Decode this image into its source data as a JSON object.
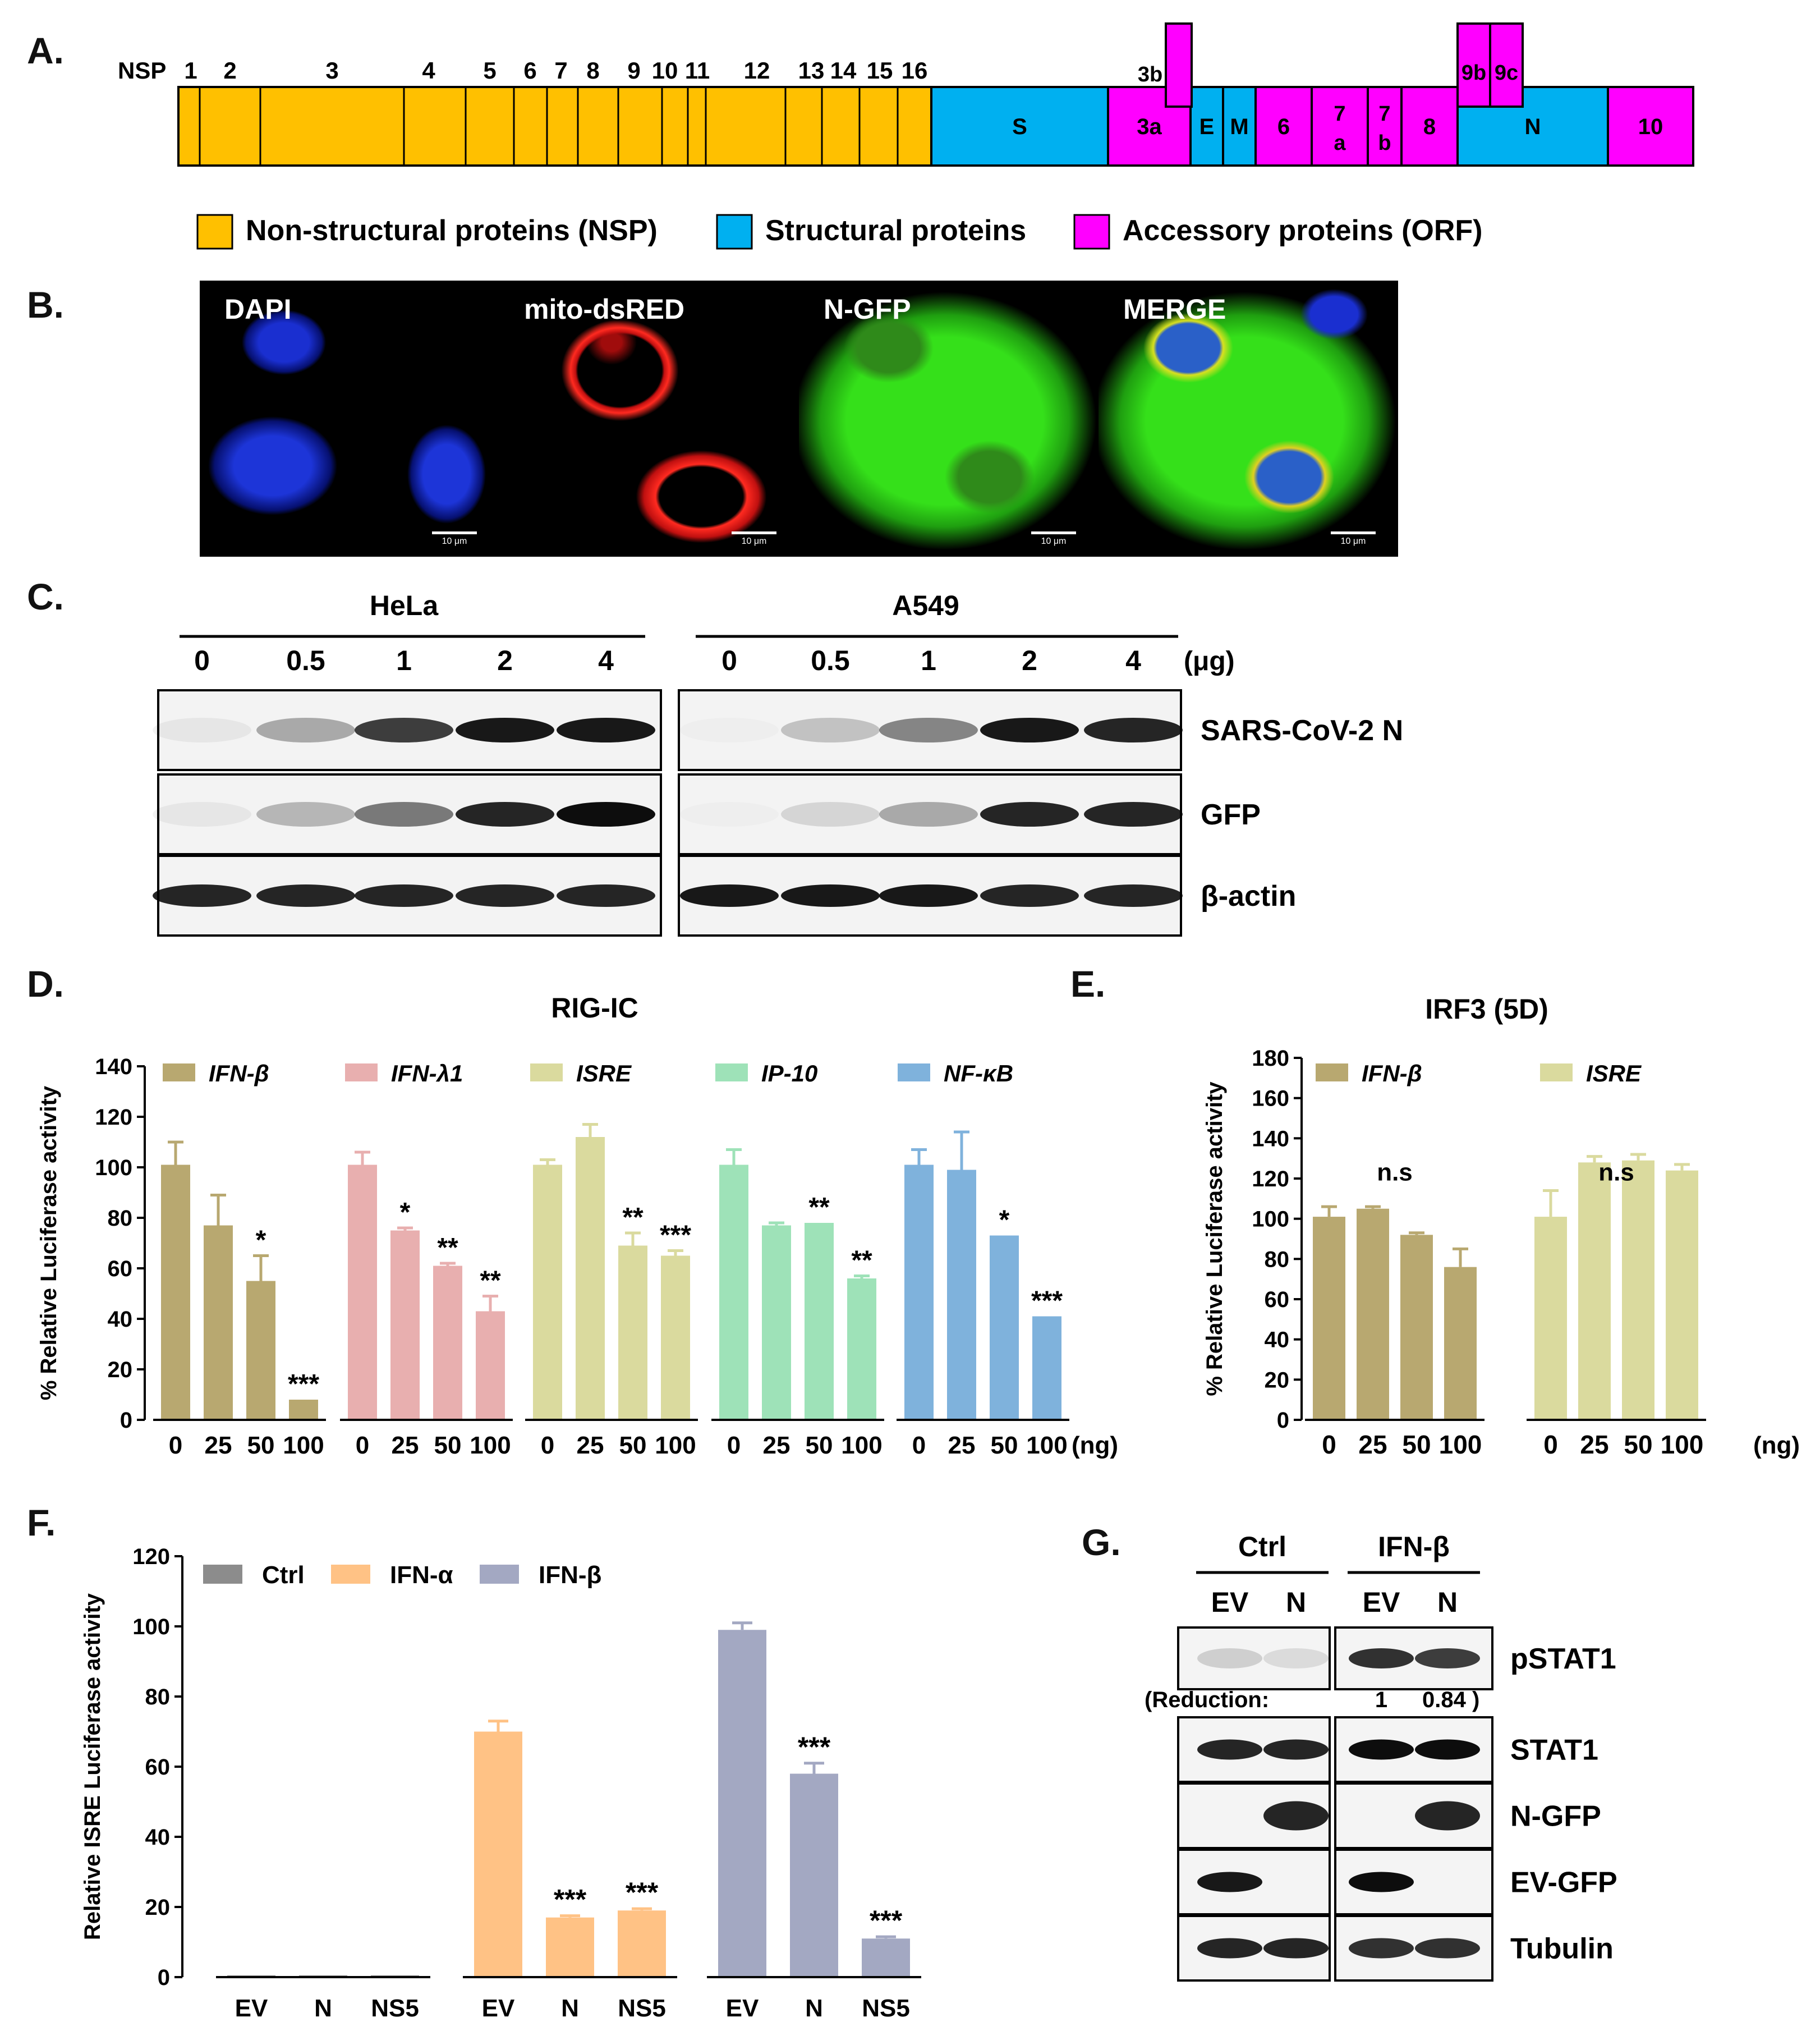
{
  "panels": {
    "A": "A.",
    "B": "B.",
    "C": "C.",
    "D": "D.",
    "E": "E.",
    "F": "F.",
    "G": "G."
  },
  "genome": {
    "nsp_prefix": "NSP",
    "nsp_numbers": [
      "1",
      "2",
      "3",
      "4",
      "5",
      "6",
      "7",
      "8",
      "9",
      "10",
      "11",
      "12",
      "13",
      "14",
      "15",
      "16"
    ],
    "segments": {
      "S": "S",
      "3a": "3a",
      "E": "E",
      "M": "M",
      "6": "6",
      "7a_top": "7",
      "7a_bot": "a",
      "7b_top": "7",
      "7b_bot": "b",
      "8": "8",
      "N": "N",
      "10": "10",
      "3b": "3b",
      "9b": "9b",
      "9c": "9c"
    },
    "legend": [
      "Non-structural proteins (NSP)",
      "Structural proteins",
      "Accessory proteins (ORF)"
    ],
    "colors": {
      "nsp": "#FFC000",
      "structural": "#00B0F0",
      "accessory": "#FF00FF"
    }
  },
  "microscopy": {
    "labels": [
      "DAPI",
      "mito-dsRED",
      "N-GFP",
      "MERGE"
    ],
    "scale": "10 μm"
  },
  "westernC": {
    "groups": [
      "HeLa",
      "A549"
    ],
    "doses": [
      "0",
      "0.5",
      "1",
      "2",
      "4"
    ],
    "unit": "(μg)",
    "rows": [
      "SARS-CoV-2 N",
      "GFP",
      "β-actin"
    ]
  },
  "chart_data": [
    {
      "id": "D",
      "type": "bar",
      "title": "RIG-IC",
      "ylabel": "% Relative Luciferase activity",
      "xunit": "(ng)",
      "ylim": [
        0,
        140
      ],
      "yticks": [
        0,
        20,
        40,
        60,
        80,
        100,
        120,
        140
      ],
      "categories": [
        "0",
        "25",
        "50",
        "100"
      ],
      "series": [
        {
          "name": "IFN-β",
          "color": "#B8A870",
          "values": [
            101,
            77,
            55,
            8
          ],
          "errors": [
            9,
            12,
            10,
            0
          ],
          "sig": [
            "",
            "",
            "*",
            "***"
          ]
        },
        {
          "name": "IFN-λ1",
          "color": "#E8AFAF",
          "values": [
            101,
            75,
            61,
            43
          ],
          "errors": [
            5,
            1,
            1,
            6
          ],
          "sig": [
            "",
            "*",
            "**",
            "**"
          ]
        },
        {
          "name": "ISRE",
          "color": "#DADA9E",
          "values": [
            101,
            112,
            69,
            65
          ],
          "errors": [
            2,
            5,
            5,
            2
          ],
          "sig": [
            "",
            "",
            "**",
            "***"
          ]
        },
        {
          "name": "IP-10",
          "color": "#9EE2B8",
          "values": [
            101,
            77,
            78,
            56
          ],
          "errors": [
            6,
            1,
            0,
            1
          ],
          "sig": [
            "",
            "",
            "**",
            "**"
          ]
        },
        {
          "name": "NF-κB",
          "color": "#7FB2DC",
          "values": [
            101,
            99,
            73,
            41
          ],
          "errors": [
            6,
            15,
            0,
            0
          ],
          "sig": [
            "",
            "",
            "*",
            "***"
          ]
        }
      ]
    },
    {
      "id": "E",
      "type": "bar",
      "title": "IRF3 (5D)",
      "ylabel": "% Relative Luciferase activity",
      "xunit": "(ng)",
      "ylim": [
        0,
        180
      ],
      "yticks": [
        0,
        20,
        40,
        60,
        80,
        100,
        120,
        140,
        160,
        180
      ],
      "categories": [
        "0",
        "25",
        "50",
        "100"
      ],
      "series": [
        {
          "name": "IFN-β",
          "color": "#B8A870",
          "values": [
            101,
            105,
            92,
            76
          ],
          "errors": [
            5,
            1,
            1,
            9
          ],
          "label": "n.s"
        },
        {
          "name": "ISRE",
          "color": "#DADA9E",
          "values": [
            101,
            128,
            129,
            124
          ],
          "errors": [
            13,
            3,
            3,
            3
          ],
          "label": "n.s"
        }
      ]
    },
    {
      "id": "F",
      "type": "bar",
      "ylabel": "Relative ISRE Luciferase activity",
      "ylim": [
        0,
        120
      ],
      "yticks": [
        0,
        20,
        40,
        60,
        80,
        100,
        120
      ],
      "categories": [
        "EV",
        "N",
        "NS5"
      ],
      "series": [
        {
          "name": "Ctrl",
          "color": "#8C8C8C",
          "values": [
            0.5,
            0.5,
            0.5
          ],
          "errors": [
            0,
            0,
            0
          ],
          "sig": [
            "",
            "",
            ""
          ]
        },
        {
          "name": "IFN-α",
          "color": "#FFC285",
          "values": [
            70,
            17,
            19
          ],
          "errors": [
            3,
            0.5,
            0.5
          ],
          "sig": [
            "",
            "***",
            "***"
          ]
        },
        {
          "name": "IFN-β",
          "color": "#A3A8C2",
          "values": [
            99,
            58,
            11
          ],
          "errors": [
            2,
            3,
            0.5
          ],
          "sig": [
            "",
            "***",
            "***"
          ]
        }
      ]
    }
  ],
  "westernG": {
    "groups": [
      "Ctrl",
      "IFN-β"
    ],
    "lanes": [
      "EV",
      "N",
      "EV",
      "N"
    ],
    "rows": [
      "pSTAT1",
      "STAT1",
      "N-GFP",
      "EV-GFP",
      "Tubulin"
    ],
    "reduction_label": "(Reduction:",
    "reduction_values": [
      "1",
      "0.84 )"
    ]
  }
}
